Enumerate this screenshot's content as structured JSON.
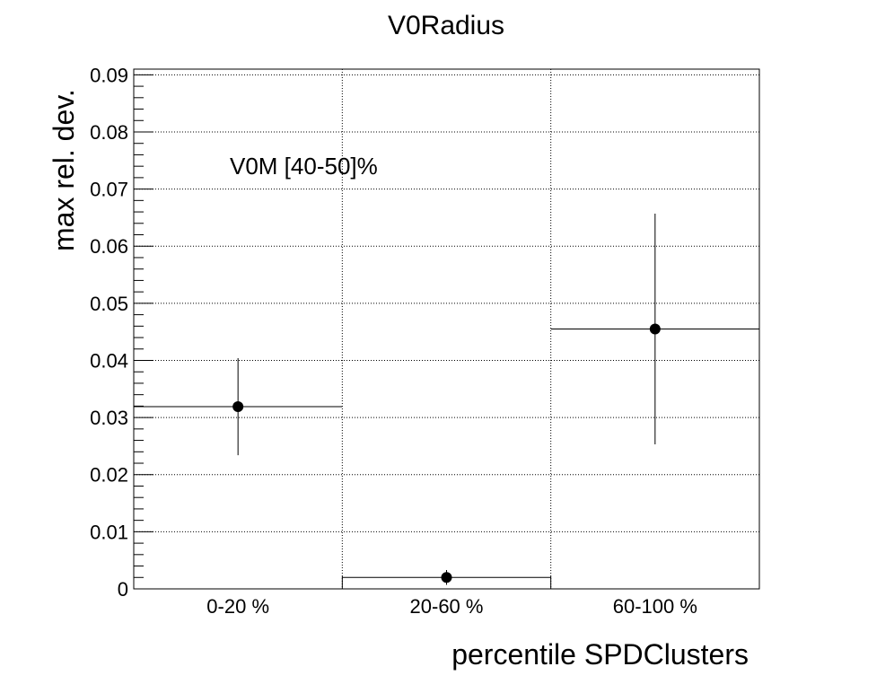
{
  "chart_data": {
    "type": "scatter",
    "title": "V0Radius",
    "xlabel": "percentile SPDClusters",
    "ylabel": "max rel. dev.",
    "annotation": "V0M [40-50]%",
    "categories": [
      "0-20 %",
      "20-60 %",
      "60-100 %"
    ],
    "ylim": [
      0,
      0.091
    ],
    "yticks": [
      0,
      0.01,
      0.02,
      0.03,
      0.04,
      0.05,
      0.06,
      0.07,
      0.08,
      0.09
    ],
    "ytick_labels": [
      "0",
      "0.01",
      "0.02",
      "0.03",
      "0.04",
      "0.05",
      "0.06",
      "0.07",
      "0.08",
      "0.09"
    ],
    "grid": true,
    "series": [
      {
        "values": [
          0.0319,
          0.002,
          0.0455
        ],
        "errors": [
          0.0085,
          0.0013,
          0.0202
        ]
      }
    ]
  }
}
